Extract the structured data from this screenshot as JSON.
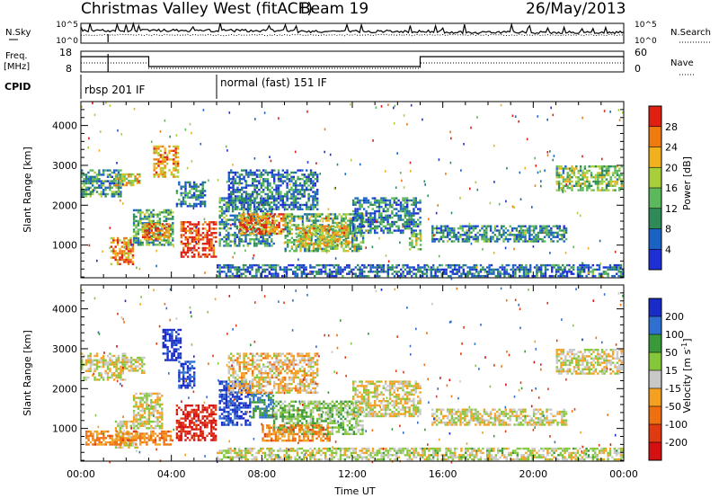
{
  "header": {
    "title": "Christmas Valley West (fitACF)",
    "beam": "Beam 19",
    "date": "26/May/2013"
  },
  "noise_panel": {
    "left_label": "N.Sky",
    "right_label": "N.Search",
    "left_ticks": [
      "10^5",
      "10^0"
    ],
    "right_ticks": [
      "10^5",
      "10^0"
    ]
  },
  "freq_panel": {
    "left_label_1": "Freq.",
    "left_label_2": "[MHz]",
    "right_label": "Nave",
    "left_ticks": [
      "18",
      "8"
    ],
    "right_ticks": [
      "60",
      "0"
    ]
  },
  "cpid": {
    "label": "CPID",
    "modes": [
      {
        "name": "rbsp 201 IF",
        "start_hour": 0
      },
      {
        "name": "normal (fast) 151 IF",
        "start_hour": 6
      }
    ]
  },
  "colors": {
    "power": [
      "#1f2fd6",
      "#1a63c4",
      "#2e8b57",
      "#5cb85c",
      "#a8cf3a",
      "#f2b01e",
      "#ee7a10",
      "#e02010"
    ],
    "velocity": [
      "#1a2cc8",
      "#2f6fd0",
      "#3a9a3a",
      "#84c73a",
      "#c8c8c8",
      "#f4a020",
      "#ee7010",
      "#e03a10",
      "#d41010"
    ]
  },
  "chart_data": [
    {
      "type": "heatmap",
      "name": "power",
      "xlabel": "Time UT",
      "ylabel": "Slant Range [km]",
      "xlim": [
        0,
        24
      ],
      "ylim": [
        180,
        4600
      ],
      "x_tick_labels": [
        "00:00",
        "04:00",
        "08:00",
        "12:00",
        "16:00",
        "20:00",
        "00:00"
      ],
      "y_tick_labels": [
        "1000",
        "2000",
        "3000",
        "4000"
      ],
      "colorbar": {
        "label": "Power [dB]",
        "tick_labels": [
          "28",
          "24",
          "20",
          "16",
          "12",
          "8",
          "4"
        ],
        "range": [
          0,
          30
        ]
      },
      "regions": [
        {
          "t0": 0.0,
          "t1": 1.8,
          "r0": 2200,
          "r1": 2900,
          "value": 10
        },
        {
          "t0": 1.5,
          "t1": 2.6,
          "r0": 2500,
          "r1": 2800,
          "value": 18
        },
        {
          "t0": 3.2,
          "t1": 4.3,
          "r0": 2700,
          "r1": 3500,
          "value": 22
        },
        {
          "t0": 4.2,
          "t1": 5.5,
          "r0": 2000,
          "r1": 2600,
          "value": 8
        },
        {
          "t0": 1.3,
          "t1": 2.3,
          "r0": 500,
          "r1": 1200,
          "value": 24
        },
        {
          "t0": 2.3,
          "t1": 4.1,
          "r0": 1000,
          "r1": 1900,
          "value": 12
        },
        {
          "t0": 2.7,
          "t1": 3.9,
          "r0": 1150,
          "r1": 1550,
          "value": 24
        },
        {
          "t0": 4.4,
          "t1": 6.0,
          "r0": 700,
          "r1": 1600,
          "value": 28
        },
        {
          "t0": 6.1,
          "t1": 8.5,
          "r0": 1000,
          "r1": 2200,
          "value": 10
        },
        {
          "t0": 7.0,
          "t1": 9.0,
          "r0": 1300,
          "r1": 1800,
          "value": 24
        },
        {
          "t0": 9.0,
          "t1": 12.5,
          "r0": 850,
          "r1": 1800,
          "value": 13
        },
        {
          "t0": 9.5,
          "t1": 11.8,
          "r0": 1000,
          "r1": 1500,
          "value": 20
        },
        {
          "t0": 6.5,
          "t1": 10.5,
          "r0": 1900,
          "r1": 2900,
          "value": 7
        },
        {
          "t0": 12.0,
          "t1": 15.0,
          "r0": 1300,
          "r1": 2200,
          "value": 8
        },
        {
          "t0": 14.5,
          "t1": 15.0,
          "r0": 900,
          "r1": 1300,
          "value": 14
        },
        {
          "t0": 15.5,
          "t1": 21.5,
          "r0": 1100,
          "r1": 1500,
          "value": 9
        },
        {
          "t0": 21.0,
          "t1": 23.9,
          "r0": 2400,
          "r1": 3000,
          "value": 14
        },
        {
          "t0": 6.0,
          "t1": 24.0,
          "r0": 200,
          "r1": 520,
          "value": 6
        }
      ]
    },
    {
      "type": "heatmap",
      "name": "velocity",
      "xlabel": "Time UT",
      "ylabel": "Slant Range [km]",
      "xlim": [
        0,
        24
      ],
      "ylim": [
        180,
        4600
      ],
      "x_tick_labels": [
        "00:00",
        "04:00",
        "08:00",
        "12:00",
        "16:00",
        "20:00",
        "00:00"
      ],
      "y_tick_labels": [
        "1000",
        "2000",
        "3000",
        "4000"
      ],
      "colorbar": {
        "label": "Velocity [m s^-1]",
        "tick_labels": [
          "200",
          "100",
          "50",
          "15",
          "-15",
          "-50",
          "-100",
          "-200"
        ],
        "range": [
          -250,
          250
        ]
      },
      "regions": [
        {
          "t0": 0.0,
          "t1": 2.0,
          "r0": 2200,
          "r1": 2900,
          "value": 0
        },
        {
          "t0": 1.8,
          "t1": 2.8,
          "r0": 2400,
          "r1": 2800,
          "value": 0
        },
        {
          "t0": 3.6,
          "t1": 4.4,
          "r0": 2700,
          "r1": 3500,
          "value": 230
        },
        {
          "t0": 4.3,
          "t1": 5.0,
          "r0": 2000,
          "r1": 2700,
          "value": 200
        },
        {
          "t0": 1.5,
          "t1": 2.5,
          "r0": 500,
          "r1": 1200,
          "value": 0
        },
        {
          "t0": 2.3,
          "t1": 3.6,
          "r0": 1000,
          "r1": 1900,
          "value": 0
        },
        {
          "t0": 0.2,
          "t1": 4.0,
          "r0": 600,
          "r1": 950,
          "value": -60
        },
        {
          "t0": 4.2,
          "t1": 6.0,
          "r0": 700,
          "r1": 1600,
          "value": -210
        },
        {
          "t0": 6.1,
          "t1": 7.5,
          "r0": 1100,
          "r1": 2200,
          "value": 210
        },
        {
          "t0": 7.5,
          "t1": 8.5,
          "r0": 1300,
          "r1": 1900,
          "value": 110
        },
        {
          "t0": 8.5,
          "t1": 12.5,
          "r0": 850,
          "r1": 1700,
          "value": 40
        },
        {
          "t0": 8.0,
          "t1": 11.0,
          "r0": 700,
          "r1": 1100,
          "value": -60
        },
        {
          "t0": 6.5,
          "t1": 10.5,
          "r0": 1900,
          "r1": 2900,
          "value": -20
        },
        {
          "t0": 12.0,
          "t1": 15.0,
          "r0": 1300,
          "r1": 2200,
          "value": -5
        },
        {
          "t0": 15.5,
          "t1": 21.5,
          "r0": 1100,
          "r1": 1500,
          "value": 0
        },
        {
          "t0": 21.0,
          "t1": 23.9,
          "r0": 2400,
          "r1": 3000,
          "value": 0
        },
        {
          "t0": 6.0,
          "t1": 24.0,
          "r0": 200,
          "r1": 520,
          "value": 10
        }
      ]
    }
  ]
}
